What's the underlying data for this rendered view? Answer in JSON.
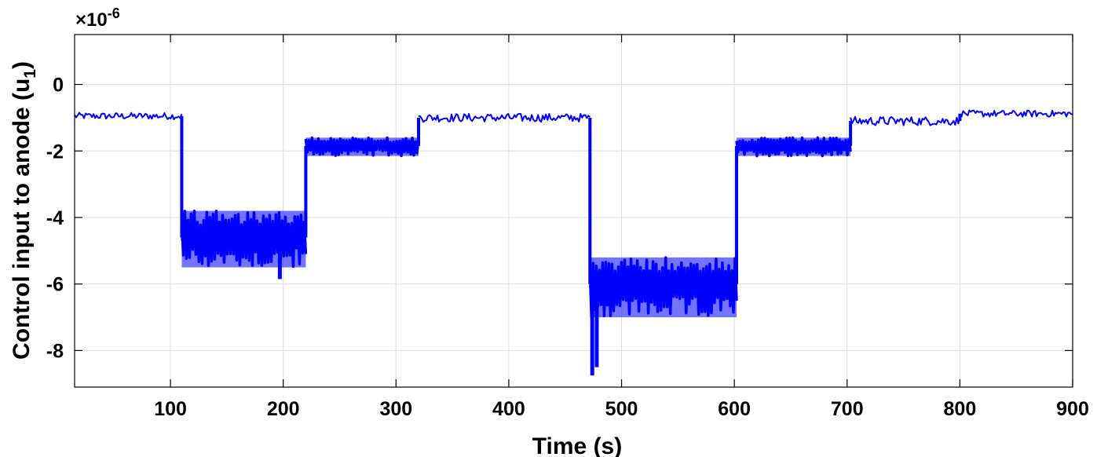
{
  "chart_data": {
    "type": "line",
    "title": "",
    "xlabel": "Time (s)",
    "ylabel_main": "Control input to anode (u",
    "ylabel_sub": "1",
    "ylabel_close": ")",
    "y_exponent_prefix": "×10",
    "y_exponent_power": "-6",
    "xlim": [
      15,
      900
    ],
    "ylim": [
      -9.1,
      1.5
    ],
    "x_ticks": [
      100,
      200,
      300,
      400,
      500,
      600,
      700,
      800,
      900
    ],
    "x_tick_labels": [
      "100",
      "200",
      "300",
      "400",
      "500",
      "600",
      "700",
      "800",
      "900"
    ],
    "y_ticks": [
      0,
      -2,
      -4,
      -6,
      -8
    ],
    "y_tick_labels": [
      "0",
      "-2",
      "-4",
      "-6",
      "-8"
    ],
    "grid": true,
    "line_color": "#0000ff",
    "series": [
      {
        "segments": [
          {
            "x_start": 15,
            "x_end": 110,
            "center": -0.95,
            "lower": -1.05,
            "upper": -0.85
          },
          {
            "x_start": 110,
            "x_end": 220,
            "center": -4.6,
            "lower": -5.5,
            "upper": -3.8
          },
          {
            "x_start": 220,
            "x_end": 320,
            "center": -1.85,
            "lower": -2.15,
            "upper": -1.6
          },
          {
            "x_start": 320,
            "x_end": 472,
            "center": -1.0,
            "lower": -1.1,
            "upper": -0.85
          },
          {
            "x_start": 472,
            "x_end": 602,
            "center": -6.0,
            "lower": -7.0,
            "upper": -5.2
          },
          {
            "x_start": 602,
            "x_end": 703,
            "center": -1.85,
            "lower": -2.15,
            "upper": -1.6
          },
          {
            "x_start": 703,
            "x_end": 800,
            "center": -1.1,
            "lower": -1.25,
            "upper": -0.98
          },
          {
            "x_start": 800,
            "x_end": 900,
            "center": -0.88,
            "lower": -0.98,
            "upper": -0.78
          }
        ],
        "spikes": [
          {
            "x": 111,
            "y": -4.7
          },
          {
            "x": 197,
            "y": -5.85
          },
          {
            "x": 474,
            "y": -8.75
          },
          {
            "x": 478,
            "y": -8.5
          }
        ]
      }
    ]
  }
}
